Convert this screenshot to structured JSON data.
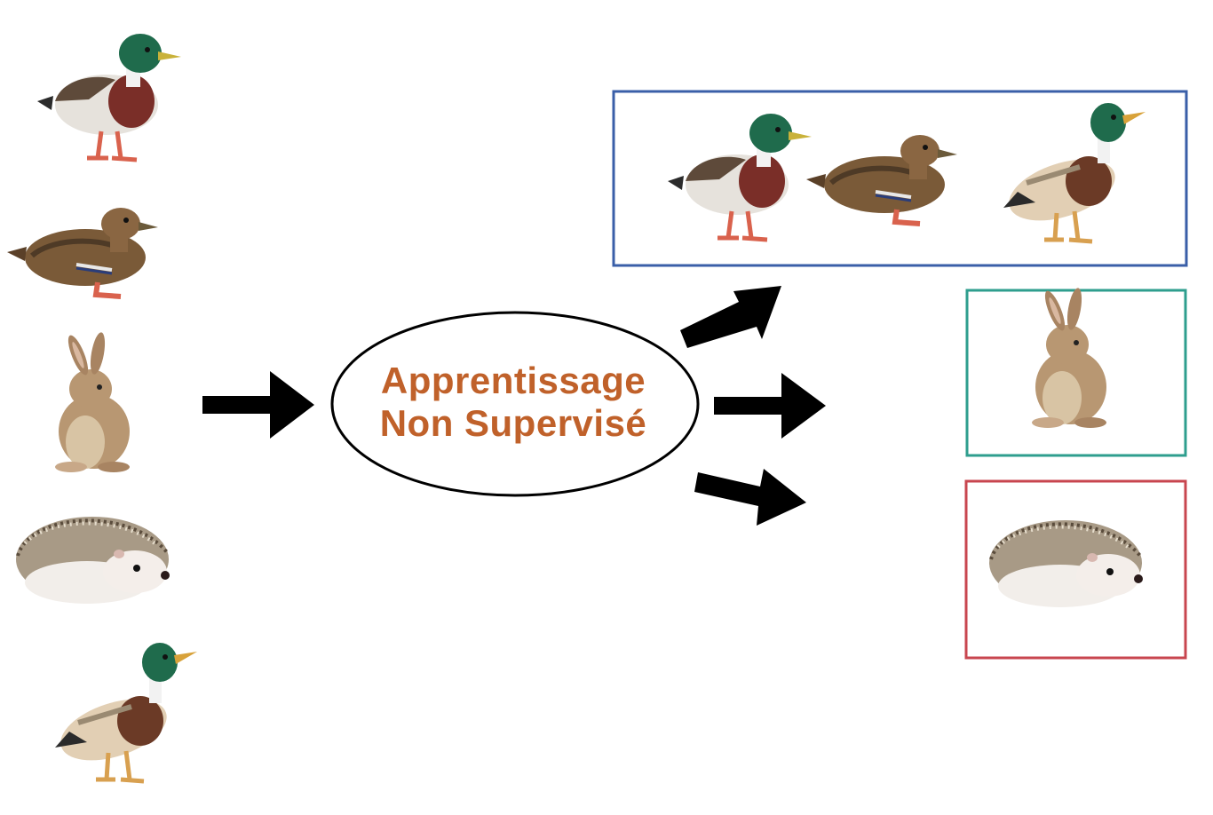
{
  "process": {
    "line1": "Apprentissage",
    "line2": "Non Supervisé"
  },
  "inputs": [
    "mallard-drake",
    "mallard-hen",
    "rabbit",
    "hedgehog",
    "mallard-drake-standing"
  ],
  "clusters": [
    {
      "name": "ducks",
      "border_color": "#3a5fa8",
      "members": [
        "mallard-drake",
        "mallard-hen",
        "mallard-drake-standing"
      ]
    },
    {
      "name": "rabbits",
      "border_color": "#2e9e8e",
      "members": [
        "rabbit"
      ]
    },
    {
      "name": "hedgehogs",
      "border_color": "#c8464f",
      "members": [
        "hedgehog"
      ]
    }
  ],
  "colors": {
    "label_text": "#c0612a",
    "arrow": "#000000",
    "ellipse_stroke": "#000000"
  }
}
